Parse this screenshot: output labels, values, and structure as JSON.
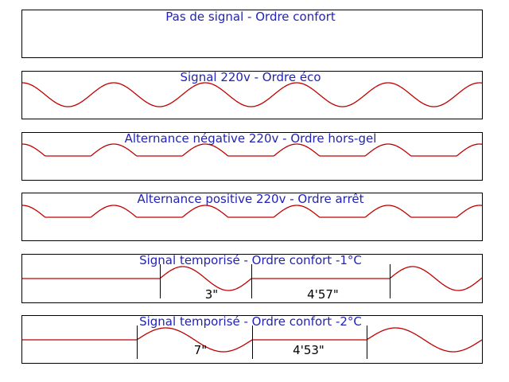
{
  "colors": {
    "wave": "#c00000",
    "title": "#2323b4",
    "frame": "#000000"
  },
  "panels": [
    {
      "title": "Pas de signal - Ordre confort",
      "signal": "none"
    },
    {
      "title": "Signal 220v - Ordre éco",
      "signal": "full"
    },
    {
      "title": "Alternance négative 220v - Ordre hors-gel",
      "signal": "negative"
    },
    {
      "title": "Alternance positive 220v - Ordre arrêt",
      "signal": "positive"
    },
    {
      "title": "Signal temporisé - Ordre confort -1°C",
      "signal": "timed",
      "durations": [
        "3\"",
        "4'57\""
      ]
    },
    {
      "title": "Signal temporisé - Ordre confort -2°C",
      "signal": "timed",
      "durations": [
        "7\"",
        "4'53\""
      ]
    }
  ]
}
